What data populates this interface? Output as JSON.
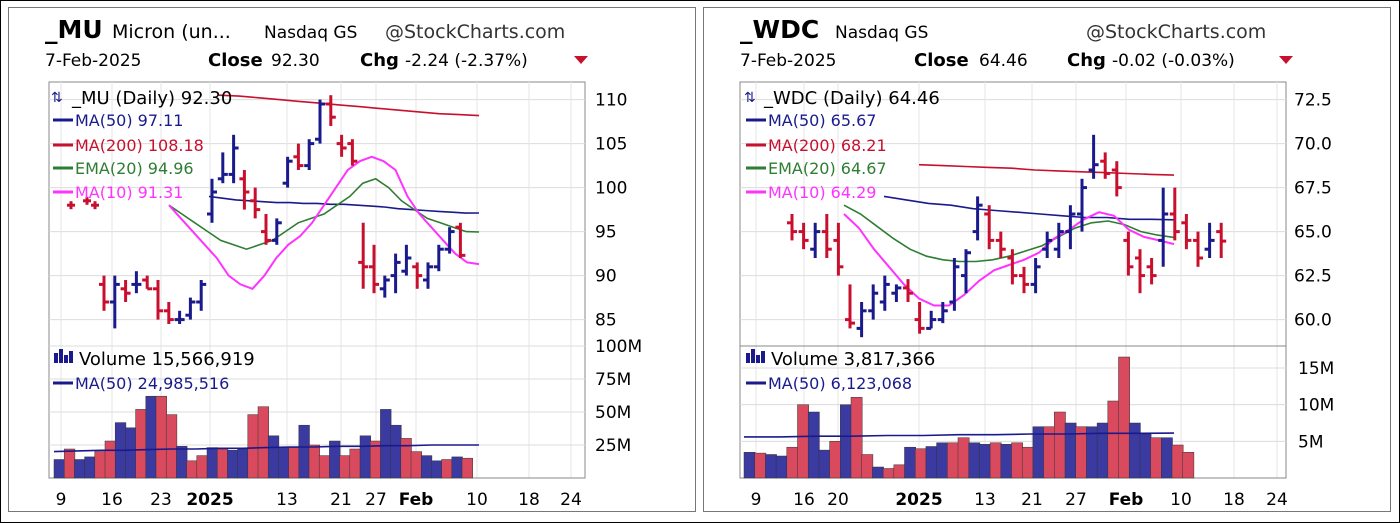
{
  "accent_colors": {
    "up": "#1a1a8c",
    "down": "#c8102e",
    "ma50": "#1a1a8c",
    "ma200": "#c8102e",
    "ema20": "#2e7d32",
    "ma10": "#ff33ff"
  },
  "charts": [
    {
      "header": {
        "symbol": "_MU",
        "name": "Micron (un...",
        "exchange": "Nasdaq GS",
        "source": "@StockCharts.com",
        "date": "7-Feb-2025",
        "close_label": "Close",
        "close_value": "92.30",
        "chg_label": "Chg",
        "chg_value": "-2.24 (-2.37%)"
      },
      "legend": {
        "main": "_MU (Daily) 92.30",
        "ma50": "MA(50) 97.11",
        "ma200": "MA(200) 108.18",
        "ema20": "EMA(20) 94.96",
        "ma10": "MA(10) 91.31"
      },
      "volume_legend": {
        "volume": "Volume 15,566,919",
        "ma50": "MA(50) 24,985,516"
      },
      "price_ticks": [
        "110",
        "105",
        "100",
        "95",
        "90",
        "85"
      ],
      "volume_ticks": [
        "100M",
        "75M",
        "50M",
        "25M"
      ],
      "x_ticks": [
        "9",
        "16",
        "23",
        "2025",
        "13",
        "21",
        "27",
        "Feb",
        "10",
        "18",
        "24"
      ]
    },
    {
      "header": {
        "symbol": "_WDC",
        "name": "",
        "exchange": "Nasdaq GS",
        "source": "@StockCharts.com",
        "date": "7-Feb-2025",
        "close_label": "Close",
        "close_value": "64.46",
        "chg_label": "Chg",
        "chg_value": "-0.02 (-0.03%)"
      },
      "legend": {
        "main": "_WDC (Daily) 64.46",
        "ma50": "MA(50) 65.67",
        "ma200": "MA(200) 68.21",
        "ema20": "EMA(20) 64.67",
        "ma10": "MA(10) 64.29"
      },
      "volume_legend": {
        "volume": "Volume 3,817,366",
        "ma50": "MA(50) 6,123,068"
      },
      "price_ticks": [
        "72.5",
        "70.0",
        "67.5",
        "65.0",
        "62.5",
        "60.0"
      ],
      "volume_ticks": [
        "15M",
        "10M",
        "5M"
      ],
      "x_ticks": [
        "9",
        "16",
        "20",
        "2025",
        "13",
        "21",
        "27",
        "Feb",
        "10",
        "18",
        "24"
      ]
    }
  ],
  "chart_data": [
    {
      "type": "ohlc",
      "symbol": "_MU",
      "ylim": [
        82,
        112
      ],
      "vol_ylim": [
        0,
        100
      ],
      "vol_unit": "M",
      "bars": [
        {
          "o": 89.0,
          "h": 90.0,
          "l": 86.0,
          "c": 87.0
        },
        {
          "o": 87.0,
          "h": 90.0,
          "l": 84.0,
          "c": 89.0
        },
        {
          "o": 88.5,
          "h": 89.5,
          "l": 87.0,
          "c": 88.0
        },
        {
          "o": 89.0,
          "h": 90.5,
          "l": 88.0,
          "c": 89.0
        },
        {
          "o": 89.5,
          "h": 90.0,
          "l": 88.5,
          "c": 88.5
        },
        {
          "o": 88.5,
          "h": 89.5,
          "l": 85.0,
          "c": 86.0
        },
        {
          "o": 86.0,
          "h": 87.0,
          "l": 84.5,
          "c": 85.0
        },
        {
          "o": 85.0,
          "h": 86.0,
          "l": 84.5,
          "c": 85.0
        },
        {
          "o": 85.5,
          "h": 87.5,
          "l": 85.0,
          "c": 87.0
        },
        {
          "o": 87.0,
          "h": 89.5,
          "l": 86.0,
          "c": 89.0
        },
        {
          "o": 97.0,
          "h": 101.0,
          "l": 96.0,
          "c": 99.5
        },
        {
          "o": 101.0,
          "h": 104.0,
          "l": 100.5,
          "c": 101.5
        },
        {
          "o": 101.5,
          "h": 106.0,
          "l": 100.5,
          "c": 104.5
        },
        {
          "o": 101.0,
          "h": 102.0,
          "l": 97.5,
          "c": 99.5
        },
        {
          "o": 98.5,
          "h": 100.0,
          "l": 96.5,
          "c": 97.5
        },
        {
          "o": 95.0,
          "h": 97.0,
          "l": 93.5,
          "c": 94.0
        },
        {
          "o": 94.0,
          "h": 96.5,
          "l": 93.5,
          "c": 96.0
        },
        {
          "o": 100.5,
          "h": 103.5,
          "l": 100.0,
          "c": 103.0
        },
        {
          "o": 103.5,
          "h": 105.0,
          "l": 102.0,
          "c": 102.5
        },
        {
          "o": 102.5,
          "h": 105.5,
          "l": 102.0,
          "c": 105.0
        },
        {
          "o": 105.5,
          "h": 110.0,
          "l": 105.0,
          "c": 109.5
        },
        {
          "o": 109.5,
          "h": 110.5,
          "l": 107.0,
          "c": 108.0
        },
        {
          "o": 105.0,
          "h": 106.0,
          "l": 103.5,
          "c": 104.5
        },
        {
          "o": 105.0,
          "h": 105.5,
          "l": 102.5,
          "c": 103.0
        },
        {
          "o": 91.5,
          "h": 96.0,
          "l": 88.5,
          "c": 91.0
        },
        {
          "o": 91.0,
          "h": 93.5,
          "l": 88.0,
          "c": 89.0
        },
        {
          "o": 88.5,
          "h": 90.0,
          "l": 87.5,
          "c": 89.5
        },
        {
          "o": 90.0,
          "h": 92.5,
          "l": 88.0,
          "c": 91.5
        },
        {
          "o": 90.5,
          "h": 93.5,
          "l": 90.0,
          "c": 92.0
        },
        {
          "o": 91.0,
          "h": 91.5,
          "l": 88.5,
          "c": 90.0
        },
        {
          "o": 89.5,
          "h": 91.5,
          "l": 88.5,
          "c": 91.0
        },
        {
          "o": 91.0,
          "h": 93.5,
          "l": 90.5,
          "c": 93.0
        },
        {
          "o": 93.0,
          "h": 95.5,
          "l": 92.5,
          "c": 95.0
        },
        {
          "o": 95.5,
          "h": 96.0,
          "l": 92.0,
          "c": 92.3
        }
      ],
      "pre_marks": [
        98.0,
        98.5,
        98.0
      ],
      "volume": [
        14,
        22,
        14,
        16,
        20,
        28,
        42,
        38,
        52,
        62,
        62,
        48,
        24,
        13,
        17,
        23,
        22,
        21,
        22,
        48,
        54,
        32,
        23,
        23,
        40,
        25,
        17,
        28,
        17,
        22,
        32,
        28,
        52,
        40,
        30,
        20,
        17,
        13,
        14,
        16,
        15
      ],
      "ma50": [
        99,
        98.8,
        98.6,
        98.5,
        98.4,
        98.3,
        98.3,
        98.2,
        98.2,
        98.1,
        98.1,
        98.0,
        97.9,
        97.8,
        97.6,
        97.5,
        97.4,
        97.3,
        97.2,
        97.1,
        97.11
      ],
      "ma200": [
        110.5,
        110.4,
        110.2,
        110.0,
        109.8,
        109.6,
        109.4,
        109.2,
        109.0,
        108.8,
        108.6,
        108.4,
        108.3,
        108.18
      ],
      "ema20": [
        98,
        97,
        96,
        95,
        94,
        93.5,
        93,
        93.5,
        94,
        95,
        96,
        96.5,
        97,
        98,
        99,
        100.5,
        101,
        100,
        98.5,
        97.5,
        96.5,
        96,
        95.5,
        95,
        94.96
      ],
      "ma10": [
        98,
        96.5,
        95,
        93.5,
        92,
        90,
        89,
        88.5,
        90,
        92,
        93.5,
        94.5,
        96,
        98,
        100,
        102,
        103,
        103.5,
        103,
        102,
        99,
        97,
        95.5,
        94,
        92.5,
        91.5,
        91.31
      ],
      "vol_ma50": [
        20,
        20.5,
        21,
        21,
        21.5,
        22,
        22,
        22.5,
        22.5,
        23,
        23.5,
        23.5,
        24,
        24,
        24.5,
        24.5,
        25,
        25,
        25
      ]
    },
    {
      "type": "ohlc",
      "symbol": "_WDC",
      "ylim": [
        58.5,
        73.5
      ],
      "vol_ylim": [
        0,
        18
      ],
      "vol_unit": "M",
      "bars": [
        {
          "o": 65.5,
          "h": 66.0,
          "l": 64.5,
          "c": 65.0
        },
        {
          "o": 65.0,
          "h": 65.5,
          "l": 64.0,
          "c": 64.5
        },
        {
          "o": 64.0,
          "h": 65.5,
          "l": 63.5,
          "c": 65.0
        },
        {
          "o": 65.0,
          "h": 66.0,
          "l": 63.5,
          "c": 64.0
        },
        {
          "o": 64.5,
          "h": 65.5,
          "l": 62.5,
          "c": 63.0
        },
        {
          "o": 60.0,
          "h": 62.0,
          "l": 59.5,
          "c": 59.8
        },
        {
          "o": 59.5,
          "h": 61.0,
          "l": 59.0,
          "c": 60.5
        },
        {
          "o": 60.5,
          "h": 62.0,
          "l": 60.0,
          "c": 61.5
        },
        {
          "o": 61.0,
          "h": 62.5,
          "l": 60.5,
          "c": 62.0
        },
        {
          "o": 61.5,
          "h": 62.0,
          "l": 61.0,
          "c": 61.8
        },
        {
          "o": 61.8,
          "h": 62.3,
          "l": 61.0,
          "c": 61.5
        },
        {
          "o": 60.0,
          "h": 61.0,
          "l": 59.2,
          "c": 59.5
        },
        {
          "o": 59.5,
          "h": 60.5,
          "l": 59.5,
          "c": 60.0
        },
        {
          "o": 60.0,
          "h": 61.0,
          "l": 59.8,
          "c": 60.5
        },
        {
          "o": 61.0,
          "h": 63.5,
          "l": 60.5,
          "c": 63.0
        },
        {
          "o": 62.5,
          "h": 64.0,
          "l": 61.5,
          "c": 63.8
        },
        {
          "o": 65.0,
          "h": 67.0,
          "l": 64.5,
          "c": 66.5
        },
        {
          "o": 66.0,
          "h": 66.5,
          "l": 64.0,
          "c": 64.5
        },
        {
          "o": 64.5,
          "h": 65.0,
          "l": 63.5,
          "c": 64.0
        },
        {
          "o": 63.5,
          "h": 64.0,
          "l": 62.0,
          "c": 62.5
        },
        {
          "o": 62.5,
          "h": 63.0,
          "l": 61.5,
          "c": 62.0
        },
        {
          "o": 62.0,
          "h": 63.5,
          "l": 61.5,
          "c": 63.0
        },
        {
          "o": 64.0,
          "h": 65.0,
          "l": 63.5,
          "c": 64.5
        },
        {
          "o": 64.0,
          "h": 65.5,
          "l": 63.5,
          "c": 65.0
        },
        {
          "o": 65.0,
          "h": 66.5,
          "l": 64.0,
          "c": 66.0
        },
        {
          "o": 66.0,
          "h": 68.0,
          "l": 65.0,
          "c": 67.5
        },
        {
          "o": 68.5,
          "h": 70.5,
          "l": 68.0,
          "c": 68.8
        },
        {
          "o": 69.0,
          "h": 69.5,
          "l": 68.0,
          "c": 68.3
        },
        {
          "o": 68.5,
          "h": 69.0,
          "l": 67.0,
          "c": 67.5
        },
        {
          "o": 64.5,
          "h": 65.0,
          "l": 62.5,
          "c": 63.0
        },
        {
          "o": 63.5,
          "h": 64.0,
          "l": 61.5,
          "c": 62.5
        },
        {
          "o": 63.0,
          "h": 63.5,
          "l": 62.0,
          "c": 62.5
        },
        {
          "o": 64.5,
          "h": 67.5,
          "l": 63.0,
          "c": 66.0
        },
        {
          "o": 66.0,
          "h": 67.5,
          "l": 64.5,
          "c": 65.0
        },
        {
          "o": 65.5,
          "h": 66.0,
          "l": 64.0,
          "c": 64.5
        },
        {
          "o": 64.5,
          "h": 65.0,
          "l": 63.0,
          "c": 63.5
        },
        {
          "o": 64.0,
          "h": 65.5,
          "l": 63.5,
          "c": 64.5
        },
        {
          "o": 65.0,
          "h": 65.5,
          "l": 63.5,
          "c": 64.46
        }
      ],
      "pre_marks": [],
      "volume": [
        3.5,
        3.4,
        3.2,
        3.0,
        4.2,
        10.0,
        9.0,
        3.8,
        5.0,
        10.0,
        11.0,
        3.2,
        1.5,
        1.3,
        1.8,
        4.2,
        4.0,
        4.3,
        4.8,
        4.8,
        5.5,
        4.8,
        4.6,
        4.8,
        4.6,
        4.8,
        4.2,
        7.0,
        7.0,
        9.0,
        7.5,
        7.0,
        7.0,
        7.5,
        10.5,
        16.5,
        7.5,
        6.0,
        5.5,
        5.5,
        4.5,
        3.5
      ],
      "ma50": [
        67.0,
        66.8,
        66.6,
        66.5,
        66.3,
        66.2,
        66.1,
        66.0,
        65.9,
        65.8,
        65.8,
        65.7,
        65.7,
        65.67
      ],
      "ma200": [
        68.8,
        68.75,
        68.7,
        68.65,
        68.6,
        68.5,
        68.45,
        68.4,
        68.35,
        68.3,
        68.25,
        68.21
      ],
      "ema20": [
        66.5,
        66.0,
        65.3,
        64.6,
        64.0,
        63.6,
        63.4,
        63.3,
        63.3,
        63.4,
        63.6,
        63.9,
        64.2,
        64.7,
        65.2,
        65.5,
        65.6,
        65.4,
        65.0,
        64.8,
        64.67
      ],
      "ma10": [
        66.0,
        65.2,
        64.0,
        63.0,
        62.0,
        61.2,
        60.8,
        60.8,
        61.4,
        62.2,
        62.8,
        63.1,
        63.4,
        63.8,
        64.6,
        65.1,
        65.7,
        66.1,
        65.9,
        65.1,
        64.7,
        64.5,
        64.29
      ],
      "vol_ma50": [
        5.6,
        5.6,
        5.7,
        5.7,
        5.8,
        5.8,
        5.9,
        5.9,
        6.0,
        6.0,
        6.1,
        6.1,
        6.12
      ]
    }
  ]
}
